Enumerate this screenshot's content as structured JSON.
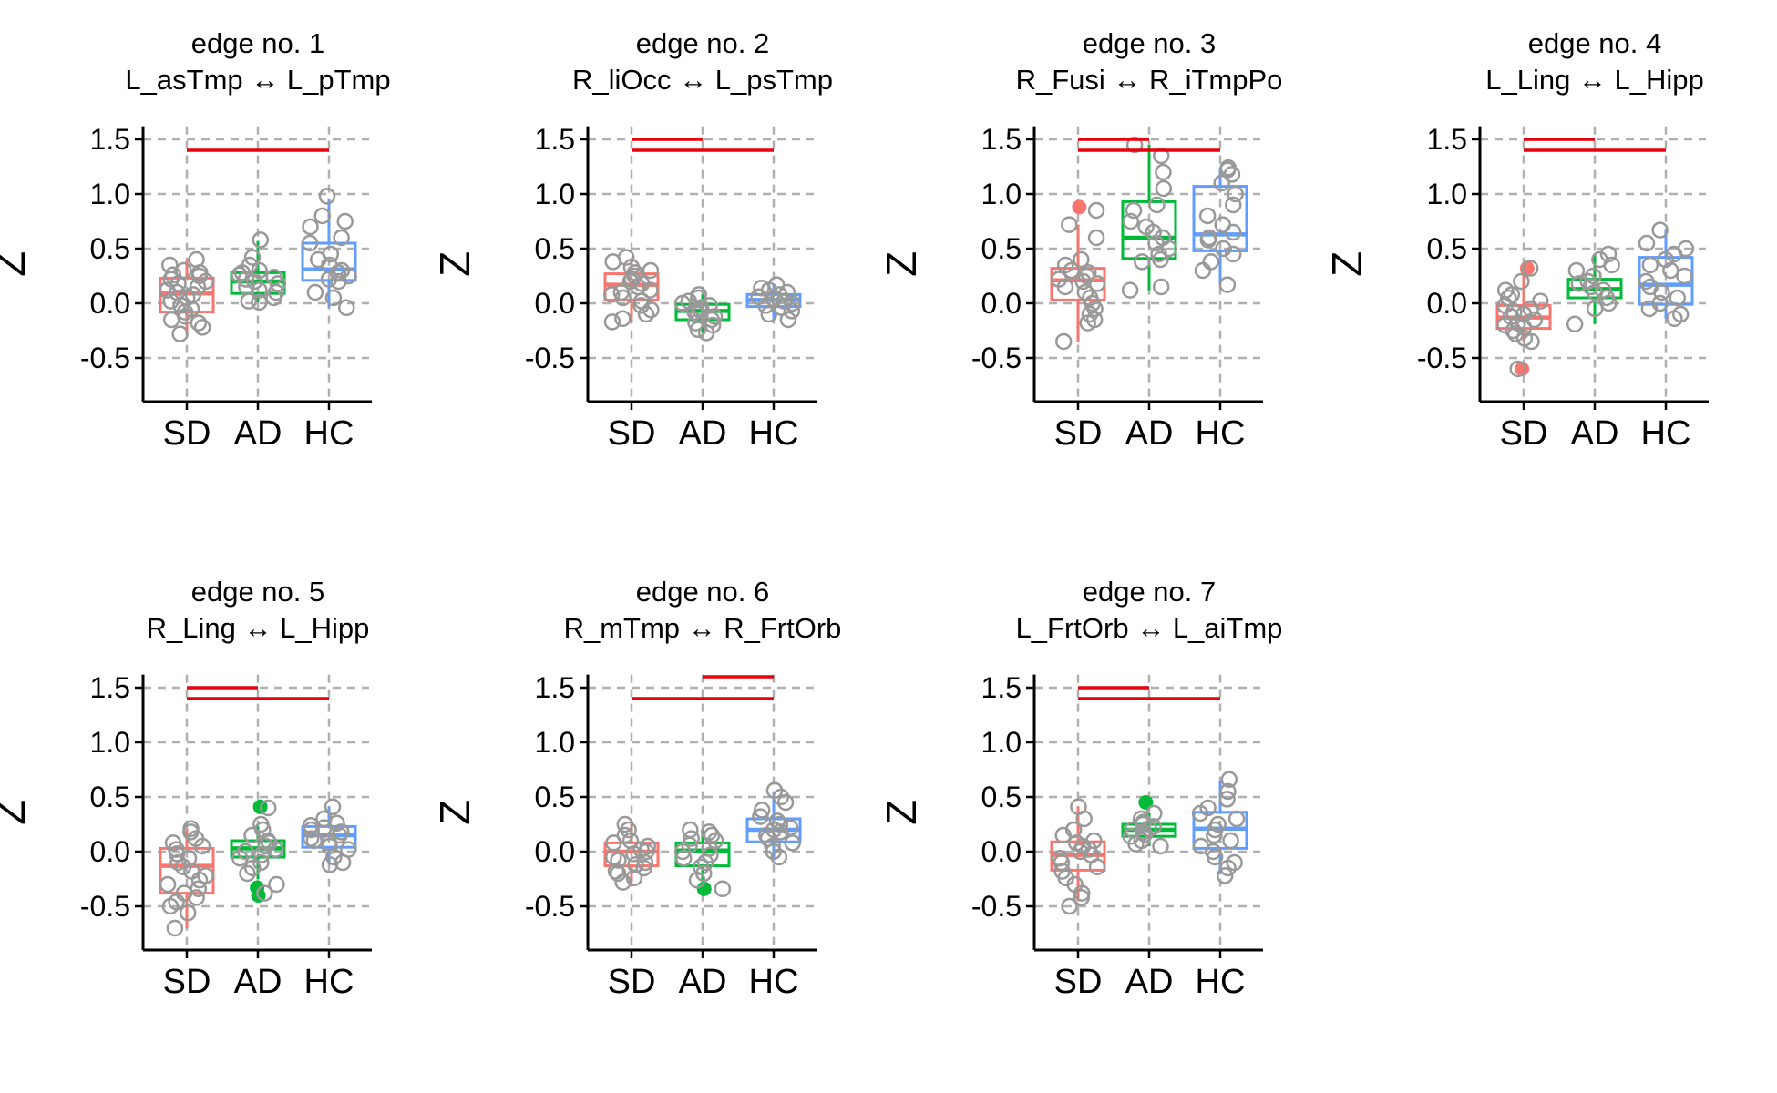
{
  "figure": {
    "groups": [
      "SD",
      "AD",
      "HC"
    ],
    "ylabel": "Z",
    "yticks": [
      1.5,
      1.0,
      0.5,
      0.0,
      -0.5
    ],
    "ytick_labels": [
      "1.5",
      "1.0",
      "0.5",
      "0.0",
      "-0.5"
    ],
    "ylim": [
      -0.9,
      1.62
    ],
    "grid": true,
    "colors": {
      "SD": "#F8766D",
      "AD": "#00BA38",
      "HC": "#619CFF",
      "point": "#999999",
      "significance": "#E8000B",
      "grid": "#b0b0b0"
    }
  },
  "chart_data": [
    {
      "type": "box",
      "title_line1": "edge no. 1",
      "title_line2": "L_asTmp ↔ L_pTmp",
      "groups": [
        {
          "name": "SD",
          "q1": -0.08,
          "median": 0.09,
          "q3": 0.23,
          "whisker_low": -0.28,
          "whisker_high": 0.4,
          "points": [
            0.4,
            0.35,
            0.3,
            0.28,
            0.26,
            0.25,
            0.22,
            0.2,
            0.18,
            0.15,
            0.12,
            0.1,
            0.08,
            0.05,
            0.02,
            -0.02,
            -0.05,
            -0.08,
            -0.12,
            -0.15,
            -0.18,
            -0.22,
            -0.28
          ],
          "outliers": []
        },
        {
          "name": "AD",
          "q1": 0.09,
          "median": 0.2,
          "q3": 0.28,
          "whisker_low": 0.01,
          "whisker_high": 0.57,
          "points": [
            0.58,
            0.42,
            0.35,
            0.3,
            0.28,
            0.26,
            0.24,
            0.22,
            0.2,
            0.18,
            0.15,
            0.12,
            0.1,
            0.05,
            0.02,
            0.01
          ],
          "outliers": []
        },
        {
          "name": "HC",
          "q1": 0.21,
          "median": 0.31,
          "q3": 0.55,
          "whisker_low": -0.04,
          "whisker_high": 0.96,
          "points": [
            0.98,
            0.8,
            0.75,
            0.7,
            0.6,
            0.55,
            0.45,
            0.4,
            0.35,
            0.3,
            0.28,
            0.25,
            0.22,
            0.2,
            0.1,
            0.05,
            -0.04
          ],
          "outliers": []
        }
      ],
      "significance": [
        {
          "from": "SD",
          "to": "HC",
          "y": 1.4
        }
      ]
    },
    {
      "type": "box",
      "title_line1": "edge no. 2",
      "title_line2": "R_liOcc ↔ L_psTmp",
      "groups": [
        {
          "name": "SD",
          "q1": 0.03,
          "median": 0.17,
          "q3": 0.27,
          "whisker_low": -0.17,
          "whisker_high": 0.41,
          "points": [
            0.42,
            0.38,
            0.33,
            0.3,
            0.28,
            0.25,
            0.22,
            0.2,
            0.18,
            0.15,
            0.12,
            0.1,
            0.08,
            0.05,
            0.02,
            -0.02,
            -0.06,
            -0.1,
            -0.14,
            -0.17
          ],
          "outliers": []
        },
        {
          "name": "AD",
          "q1": -0.15,
          "median": -0.07,
          "q3": -0.01,
          "whisker_low": -0.27,
          "whisker_high": 0.08,
          "points": [
            0.08,
            0.05,
            0.02,
            0.0,
            -0.02,
            -0.04,
            -0.06,
            -0.08,
            -0.1,
            -0.12,
            -0.15,
            -0.18,
            -0.2,
            -0.24,
            -0.27
          ],
          "outliers": []
        },
        {
          "name": "HC",
          "q1": -0.03,
          "median": 0.03,
          "q3": 0.08,
          "whisker_low": -0.15,
          "whisker_high": 0.17,
          "points": [
            0.17,
            0.14,
            0.12,
            0.1,
            0.08,
            0.06,
            0.04,
            0.02,
            0.0,
            -0.02,
            -0.04,
            -0.07,
            -0.1,
            -0.15
          ],
          "outliers": []
        }
      ],
      "significance": [
        {
          "from": "SD",
          "to": "AD",
          "y": 1.5
        },
        {
          "from": "SD",
          "to": "HC",
          "y": 1.4
        }
      ]
    },
    {
      "type": "box",
      "title_line1": "edge no. 3",
      "title_line2": "R_Fusi ↔ R_iTmpPo",
      "groups": [
        {
          "name": "SD",
          "q1": 0.03,
          "median": 0.21,
          "q3": 0.32,
          "whisker_low": -0.35,
          "whisker_high": 0.72,
          "points": [
            0.85,
            0.72,
            0.6,
            0.4,
            0.35,
            0.3,
            0.28,
            0.25,
            0.22,
            0.2,
            0.18,
            0.15,
            0.1,
            0.05,
            0.0,
            -0.05,
            -0.1,
            -0.15,
            -0.18,
            -0.35
          ],
          "outliers": [
            0.88
          ]
        },
        {
          "name": "AD",
          "q1": 0.41,
          "median": 0.6,
          "q3": 0.93,
          "whisker_low": 0.12,
          "whisker_high": 1.45,
          "points": [
            1.45,
            1.35,
            1.2,
            1.05,
            0.9,
            0.85,
            0.75,
            0.7,
            0.65,
            0.6,
            0.55,
            0.5,
            0.45,
            0.4,
            0.38,
            0.15,
            0.12
          ],
          "outliers": []
        },
        {
          "name": "HC",
          "q1": 0.48,
          "median": 0.63,
          "q3": 1.07,
          "whisker_low": 0.17,
          "whisker_high": 1.24,
          "points": [
            1.24,
            1.22,
            1.18,
            1.1,
            1.0,
            0.9,
            0.8,
            0.72,
            0.65,
            0.6,
            0.58,
            0.5,
            0.45,
            0.38,
            0.3,
            0.17
          ],
          "outliers": []
        }
      ],
      "significance": [
        {
          "from": "SD",
          "to": "AD",
          "y": 1.5
        },
        {
          "from": "SD",
          "to": "HC",
          "y": 1.4
        }
      ]
    },
    {
      "type": "box",
      "title_line1": "edge no. 4",
      "title_line2": "L_Ling ↔ L_Hipp",
      "groups": [
        {
          "name": "SD",
          "q1": -0.23,
          "median": -0.13,
          "q3": -0.02,
          "whisker_low": -0.35,
          "whisker_high": 0.3,
          "points": [
            0.32,
            0.2,
            0.12,
            0.08,
            0.05,
            0.02,
            -0.02,
            -0.05,
            -0.08,
            -0.1,
            -0.12,
            -0.15,
            -0.18,
            -0.2,
            -0.22,
            -0.25,
            -0.28,
            -0.32,
            -0.35,
            -0.6
          ],
          "outliers": [
            0.32,
            -0.6
          ]
        },
        {
          "name": "AD",
          "q1": 0.05,
          "median": 0.13,
          "q3": 0.22,
          "whisker_low": -0.19,
          "whisker_high": 0.45,
          "points": [
            0.45,
            0.4,
            0.35,
            0.3,
            0.25,
            0.2,
            0.18,
            0.15,
            0.12,
            0.1,
            0.05,
            0.0,
            -0.05,
            -0.19
          ],
          "outliers": []
        },
        {
          "name": "HC",
          "q1": -0.01,
          "median": 0.17,
          "q3": 0.42,
          "whisker_low": -0.14,
          "whisker_high": 0.67,
          "points": [
            0.67,
            0.55,
            0.5,
            0.45,
            0.4,
            0.35,
            0.3,
            0.25,
            0.2,
            0.15,
            0.1,
            0.05,
            0.0,
            -0.05,
            -0.1,
            -0.14
          ],
          "outliers": []
        }
      ],
      "significance": [
        {
          "from": "SD",
          "to": "AD",
          "y": 1.5
        },
        {
          "from": "SD",
          "to": "HC",
          "y": 1.4
        }
      ]
    },
    {
      "type": "box",
      "title_line1": "edge no. 5",
      "title_line2": "R_Ling ↔ L_Hipp",
      "groups": [
        {
          "name": "SD",
          "q1": -0.38,
          "median": -0.13,
          "q3": 0.03,
          "whisker_low": -0.7,
          "whisker_high": 0.21,
          "points": [
            0.21,
            0.18,
            0.12,
            0.08,
            0.05,
            0.02,
            -0.02,
            -0.06,
            -0.1,
            -0.14,
            -0.18,
            -0.22,
            -0.26,
            -0.3,
            -0.34,
            -0.38,
            -0.42,
            -0.46,
            -0.5,
            -0.56,
            -0.7
          ],
          "outliers": []
        },
        {
          "name": "AD",
          "q1": -0.05,
          "median": 0.03,
          "q3": 0.1,
          "whisker_low": -0.25,
          "whisker_high": 0.23,
          "points": [
            0.4,
            0.25,
            0.2,
            0.15,
            0.1,
            0.08,
            0.05,
            0.02,
            0.0,
            -0.03,
            -0.06,
            -0.1,
            -0.15,
            -0.2,
            -0.3,
            -0.38
          ],
          "outliers": [
            0.41,
            -0.33,
            -0.4
          ]
        },
        {
          "name": "HC",
          "q1": 0.04,
          "median": 0.15,
          "q3": 0.23,
          "whisker_low": -0.12,
          "whisker_high": 0.41,
          "points": [
            0.41,
            0.3,
            0.26,
            0.24,
            0.22,
            0.2,
            0.18,
            0.15,
            0.12,
            0.1,
            0.08,
            0.05,
            0.02,
            -0.05,
            -0.1,
            -0.12
          ],
          "outliers": []
        }
      ],
      "significance": [
        {
          "from": "SD",
          "to": "AD",
          "y": 1.5
        },
        {
          "from": "SD",
          "to": "HC",
          "y": 1.4
        }
      ]
    },
    {
      "type": "box",
      "title_line1": "edge no. 6",
      "title_line2": "R_mTmp ↔ R_FrtOrb",
      "groups": [
        {
          "name": "SD",
          "q1": -0.13,
          "median": 0.0,
          "q3": 0.08,
          "whisker_low": -0.28,
          "whisker_high": 0.25,
          "points": [
            0.25,
            0.2,
            0.15,
            0.1,
            0.08,
            0.05,
            0.02,
            0.0,
            -0.02,
            -0.05,
            -0.08,
            -0.1,
            -0.12,
            -0.15,
            -0.18,
            -0.2,
            -0.24,
            -0.28
          ],
          "outliers": []
        },
        {
          "name": "AD",
          "q1": -0.13,
          "median": 0.01,
          "q3": 0.08,
          "whisker_low": -0.35,
          "whisker_high": 0.2,
          "points": [
            0.2,
            0.18,
            0.15,
            0.12,
            0.1,
            0.06,
            0.03,
            0.0,
            -0.03,
            -0.06,
            -0.1,
            -0.14,
            -0.2,
            -0.26,
            -0.34
          ],
          "outliers": [
            -0.34
          ]
        },
        {
          "name": "HC",
          "q1": 0.09,
          "median": 0.2,
          "q3": 0.3,
          "whisker_low": -0.08,
          "whisker_high": 0.55,
          "points": [
            0.56,
            0.5,
            0.45,
            0.38,
            0.32,
            0.28,
            0.25,
            0.22,
            0.2,
            0.18,
            0.15,
            0.12,
            0.08,
            0.05,
            0.0,
            -0.05
          ],
          "outliers": []
        }
      ],
      "significance": [
        {
          "from": "AD",
          "to": "HC",
          "y": 1.6
        },
        {
          "from": "SD",
          "to": "HC",
          "y": 1.4
        }
      ]
    },
    {
      "type": "box",
      "title_line1": "edge no. 7",
      "title_line2": "L_FrtOrb ↔ L_aiTmp",
      "groups": [
        {
          "name": "SD",
          "q1": -0.17,
          "median": -0.03,
          "q3": 0.09,
          "whisker_low": -0.45,
          "whisker_high": 0.41,
          "points": [
            0.41,
            0.3,
            0.2,
            0.15,
            0.1,
            0.08,
            0.05,
            0.02,
            0.0,
            -0.03,
            -0.06,
            -0.1,
            -0.14,
            -0.18,
            -0.24,
            -0.3,
            -0.38,
            -0.42,
            -0.5
          ],
          "outliers": []
        },
        {
          "name": "AD",
          "q1": 0.14,
          "median": 0.2,
          "q3": 0.25,
          "whisker_low": 0.05,
          "whisker_high": 0.35,
          "points": [
            0.35,
            0.3,
            0.27,
            0.25,
            0.23,
            0.21,
            0.2,
            0.18,
            0.16,
            0.14,
            0.1,
            0.07,
            0.05
          ],
          "outliers": [
            0.45
          ]
        },
        {
          "name": "HC",
          "q1": 0.03,
          "median": 0.21,
          "q3": 0.36,
          "whisker_low": -0.21,
          "whisker_high": 0.65,
          "points": [
            0.66,
            0.55,
            0.48,
            0.4,
            0.35,
            0.3,
            0.25,
            0.2,
            0.15,
            0.1,
            0.05,
            0.0,
            -0.05,
            -0.1,
            -0.15,
            -0.22
          ],
          "outliers": []
        }
      ],
      "significance": [
        {
          "from": "SD",
          "to": "AD",
          "y": 1.5
        },
        {
          "from": "SD",
          "to": "HC",
          "y": 1.4
        }
      ]
    }
  ]
}
